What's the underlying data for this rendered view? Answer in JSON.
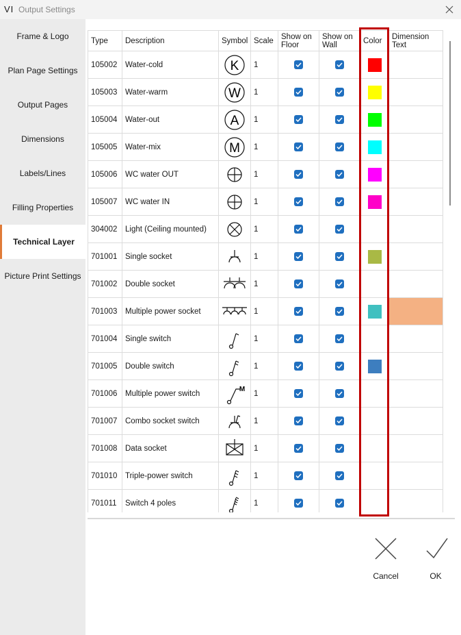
{
  "window": {
    "logo": "VI",
    "title": "Output Settings"
  },
  "sidebar": {
    "items": [
      "Frame & Logo",
      "Plan Page Settings",
      "Output Pages",
      "Dimensions",
      "Labels/Lines",
      "Filling Properties",
      "Technical Layer",
      "Picture Print Settings"
    ],
    "active": 6
  },
  "table": {
    "headers": [
      "Type",
      "Description",
      "Symbol",
      "Scale",
      "Show on Floor",
      "Show on Wall",
      "Color",
      "Dimension Text"
    ],
    "rows": [
      {
        "type": "105002",
        "description": "Water-cold",
        "symbol": "K",
        "scale": "1",
        "floor": true,
        "wall": true,
        "color": "#ff0000"
      },
      {
        "type": "105003",
        "description": "Water-warm",
        "symbol": "W",
        "scale": "1",
        "floor": true,
        "wall": true,
        "color": "#ffff00"
      },
      {
        "type": "105004",
        "description": "Water-out",
        "symbol": "A",
        "scale": "1",
        "floor": true,
        "wall": true,
        "color": "#00ff00"
      },
      {
        "type": "105005",
        "description": "Water-mix",
        "symbol": "M",
        "scale": "1",
        "floor": true,
        "wall": true,
        "color": "#00ffff"
      },
      {
        "type": "105006",
        "description": "WC water OUT",
        "scale": "1",
        "floor": true,
        "wall": true,
        "color": "#ff00ff"
      },
      {
        "type": "105007",
        "description": "WC water IN",
        "scale": "1",
        "floor": true,
        "wall": true,
        "color": "#ff00c8"
      },
      {
        "type": "304002",
        "description": "Light (Ceiling mounted)",
        "scale": "1",
        "floor": true,
        "wall": true
      },
      {
        "type": "701001",
        "description": "Single socket",
        "scale": "1",
        "floor": true,
        "wall": true,
        "color": "#a9b945"
      },
      {
        "type": "701002",
        "description": "Double socket",
        "scale": "1",
        "floor": true,
        "wall": true
      },
      {
        "type": "701003",
        "description": "Multiple power socket",
        "scale": "1",
        "floor": true,
        "wall": true,
        "color": "#40c0c0",
        "dimension_color": "#f4b183"
      },
      {
        "type": "701004",
        "description": "Single switch",
        "scale": "1",
        "floor": true,
        "wall": true
      },
      {
        "type": "701005",
        "description": "Double switch",
        "scale": "1",
        "floor": true,
        "wall": true,
        "color": "#3d7ebf"
      },
      {
        "type": "701006",
        "description": "Multiple power switch",
        "symbol": "M",
        "scale": "1",
        "floor": true,
        "wall": true
      },
      {
        "type": "701007",
        "description": "Combo socket switch",
        "scale": "1",
        "floor": true,
        "wall": true
      },
      {
        "type": "701008",
        "description": "Data socket",
        "scale": "1",
        "floor": true,
        "wall": true
      },
      {
        "type": "701010",
        "description": "Triple-power switch",
        "scale": "1",
        "floor": true,
        "wall": true
      },
      {
        "type": "701011",
        "description": "Switch 4 poles",
        "scale": "1",
        "floor": true,
        "wall": true
      }
    ]
  },
  "buttons": {
    "cancel": "Cancel",
    "ok": "OK"
  }
}
